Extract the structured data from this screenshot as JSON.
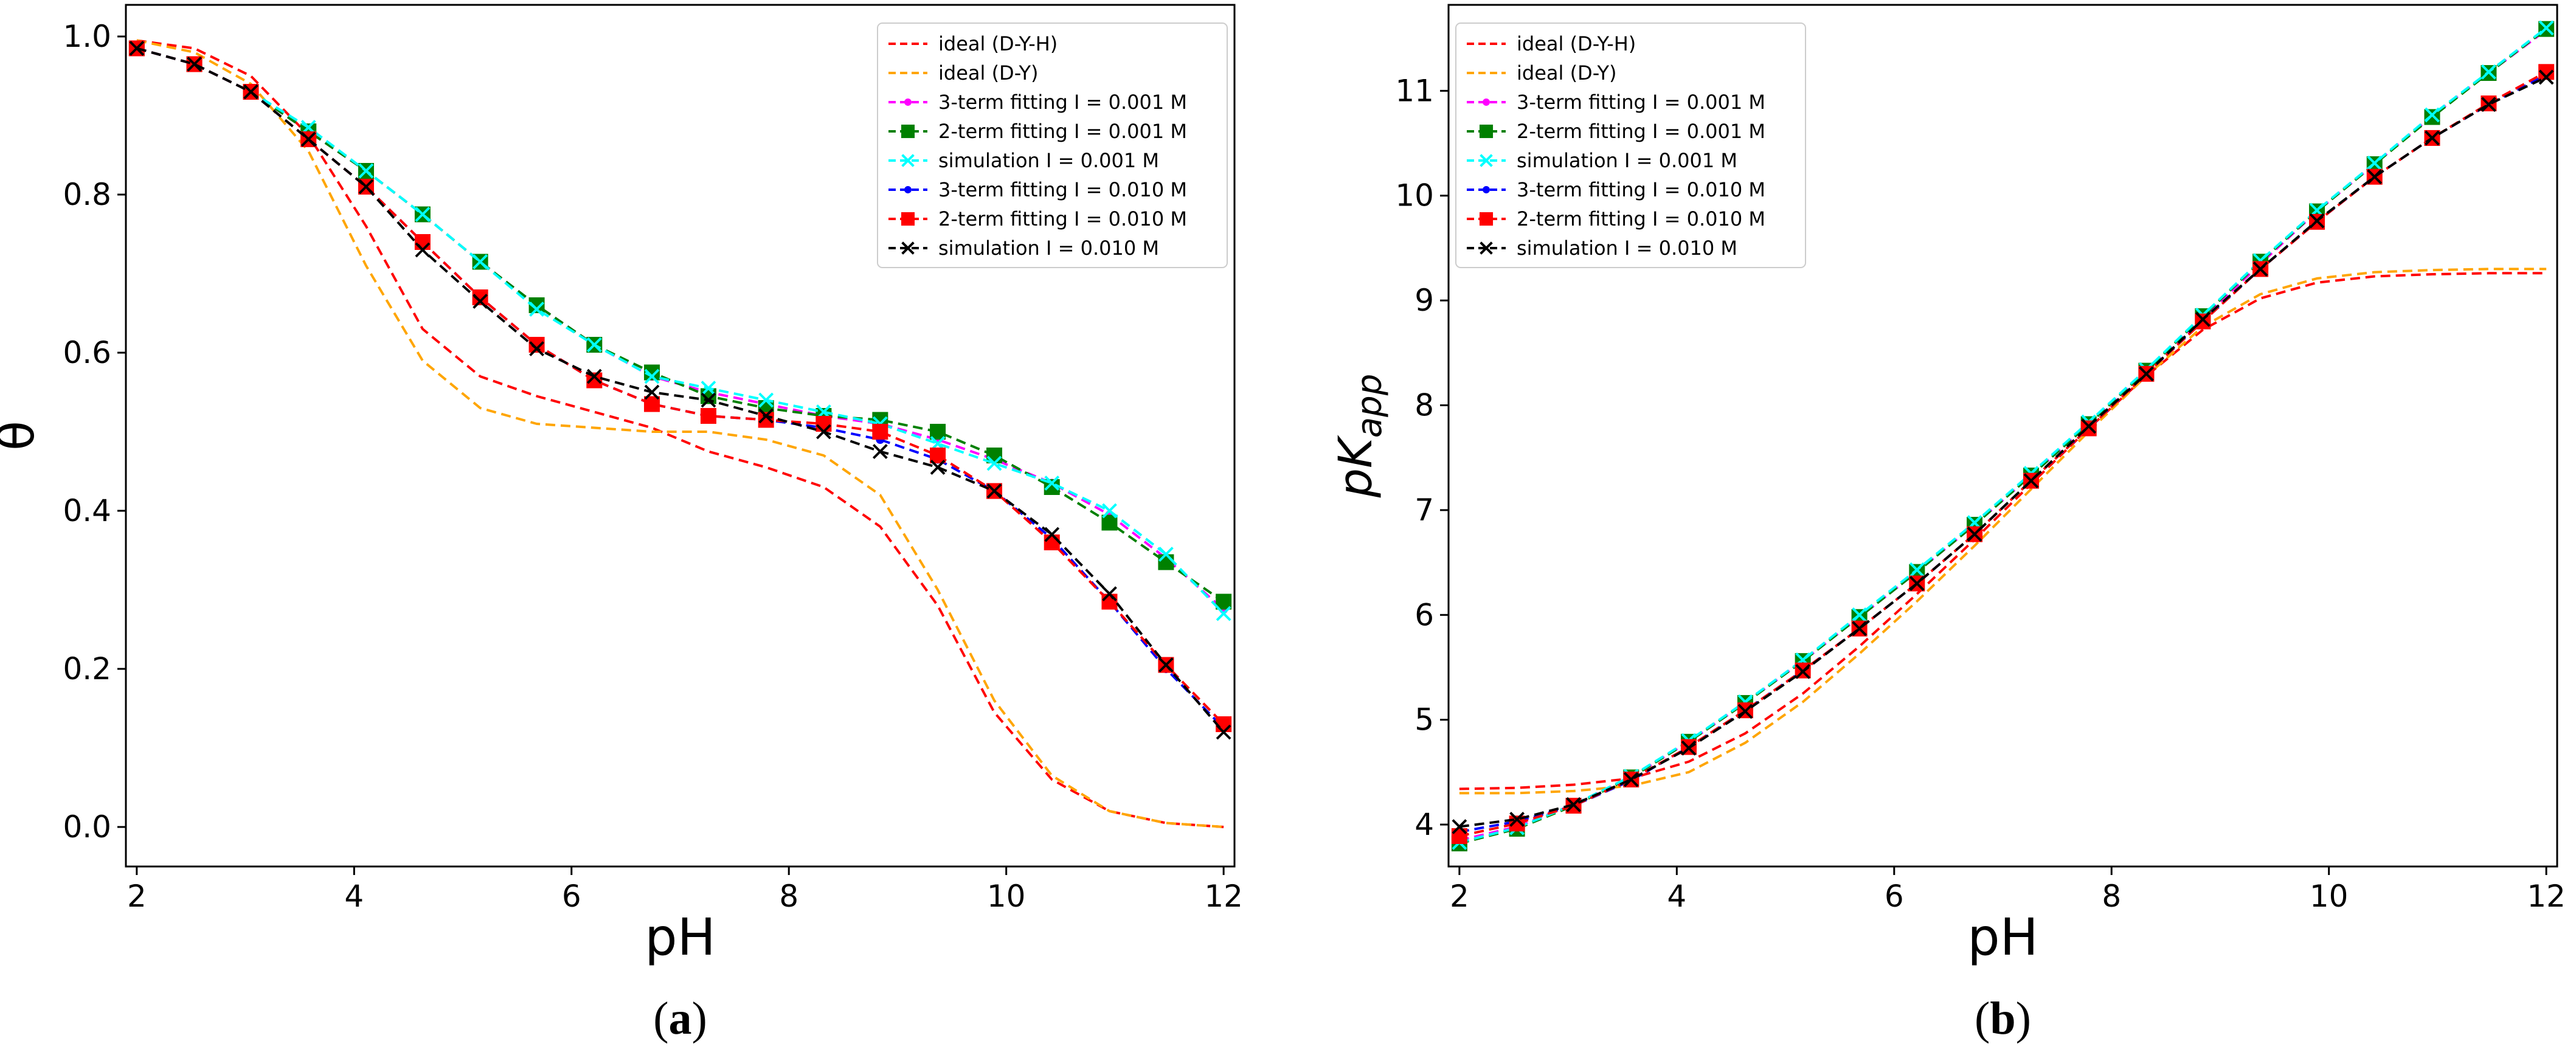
{
  "series_styles": [
    {
      "key": "ideal_dyh",
      "label": "ideal (D-Y-H)",
      "color": "#ff0000",
      "marker": "none"
    },
    {
      "key": "ideal_dy",
      "label": "ideal (D-Y)",
      "color": "#ffa500",
      "marker": "none"
    },
    {
      "key": "fit3_001",
      "label": "3-term fitting I = 0.001 M",
      "color": "#ff00ff",
      "marker": "dot"
    },
    {
      "key": "fit2_001",
      "label": "2-term fitting I = 0.001 M",
      "color": "#008000",
      "marker": "square"
    },
    {
      "key": "sim_001",
      "label": "simulation I = 0.001 M",
      "color": "#00ffff",
      "marker": "x"
    },
    {
      "key": "fit3_010",
      "label": "3-term fitting I = 0.010 M",
      "color": "#0000ff",
      "marker": "dot"
    },
    {
      "key": "fit2_010",
      "label": "2-term fitting I = 0.010 M",
      "color": "#ff0000",
      "marker": "square"
    },
    {
      "key": "sim_010",
      "label": "simulation I = 0.010 M",
      "color": "#000000",
      "marker": "x"
    }
  ],
  "chart_data": [
    {
      "id": "a",
      "type": "line",
      "caption": "a",
      "xlabel": "pH",
      "ylabel": "θ",
      "xlim": [
        1.9,
        12.1
      ],
      "ylim": [
        -0.05,
        1.04
      ],
      "xticks": [
        2,
        4,
        6,
        8,
        10,
        12
      ],
      "yticks": [
        0.0,
        0.2,
        0.4,
        0.6,
        0.8,
        1.0
      ],
      "ytick_labels": [
        "0.0",
        "0.2",
        "0.4",
        "0.6",
        "0.8",
        "1.0"
      ],
      "legend": "top-right",
      "x": [
        2.0,
        2.53,
        3.05,
        3.58,
        4.11,
        4.63,
        5.16,
        5.68,
        6.21,
        6.74,
        7.26,
        7.79,
        8.32,
        8.84,
        9.37,
        9.89,
        10.42,
        10.95,
        11.47,
        12.0
      ],
      "series": [
        {
          "key": "ideal_dyh",
          "values": [
            0.995,
            0.985,
            0.95,
            0.875,
            0.76,
            0.63,
            0.57,
            0.545,
            0.525,
            0.505,
            0.475,
            0.455,
            0.43,
            0.38,
            0.28,
            0.145,
            0.06,
            0.02,
            0.005,
            0.0
          ]
        },
        {
          "key": "ideal_dy",
          "values": [
            0.995,
            0.98,
            0.94,
            0.855,
            0.71,
            0.59,
            0.53,
            0.51,
            0.505,
            0.5,
            0.5,
            0.49,
            0.47,
            0.42,
            0.3,
            0.16,
            0.065,
            0.02,
            0.005,
            0.0
          ]
        },
        {
          "key": "fit3_001",
          "values": [
            0.985,
            0.965,
            0.93,
            0.88,
            0.83,
            0.775,
            0.715,
            0.66,
            0.61,
            0.57,
            0.55,
            0.535,
            0.52,
            0.51,
            0.49,
            0.465,
            0.435,
            0.395,
            0.34,
            0.275
          ]
        },
        {
          "key": "fit2_001",
          "values": [
            0.985,
            0.965,
            0.93,
            0.88,
            0.83,
            0.775,
            0.715,
            0.66,
            0.61,
            0.575,
            0.545,
            0.53,
            0.52,
            0.515,
            0.5,
            0.47,
            0.43,
            0.385,
            0.335,
            0.285
          ]
        },
        {
          "key": "sim_001",
          "values": [
            0.985,
            0.965,
            0.93,
            0.885,
            0.83,
            0.775,
            0.715,
            0.655,
            0.61,
            0.57,
            0.555,
            0.54,
            0.525,
            0.51,
            0.485,
            0.46,
            0.435,
            0.4,
            0.345,
            0.27
          ]
        },
        {
          "key": "fit3_010",
          "values": [
            0.985,
            0.965,
            0.93,
            0.87,
            0.81,
            0.74,
            0.67,
            0.61,
            0.565,
            0.535,
            0.52,
            0.515,
            0.505,
            0.49,
            0.465,
            0.425,
            0.365,
            0.285,
            0.2,
            0.125
          ]
        },
        {
          "key": "fit2_010",
          "values": [
            0.985,
            0.965,
            0.93,
            0.87,
            0.81,
            0.74,
            0.67,
            0.61,
            0.565,
            0.535,
            0.52,
            0.515,
            0.51,
            0.5,
            0.47,
            0.425,
            0.36,
            0.285,
            0.205,
            0.13
          ]
        },
        {
          "key": "sim_010",
          "values": [
            0.985,
            0.965,
            0.93,
            0.87,
            0.81,
            0.73,
            0.665,
            0.605,
            0.57,
            0.55,
            0.54,
            0.52,
            0.5,
            0.475,
            0.455,
            0.425,
            0.37,
            0.295,
            0.205,
            0.12
          ]
        }
      ]
    },
    {
      "id": "b",
      "type": "line",
      "caption": "b",
      "xlabel": "pH",
      "ylabel": "pK",
      "ylabel_subscript": "app",
      "xlim": [
        1.9,
        12.1
      ],
      "ylim": [
        3.6,
        11.82
      ],
      "xticks": [
        2,
        4,
        6,
        8,
        10,
        12
      ],
      "yticks": [
        4,
        5,
        6,
        7,
        8,
        9,
        10,
        11
      ],
      "ytick_labels": [
        "4",
        "5",
        "6",
        "7",
        "8",
        "9",
        "10",
        "11"
      ],
      "legend": "top-left",
      "x": [
        2.0,
        2.53,
        3.05,
        3.58,
        4.11,
        4.63,
        5.16,
        5.68,
        6.21,
        6.74,
        7.26,
        7.79,
        8.32,
        8.84,
        9.37,
        9.89,
        10.42,
        10.95,
        11.47,
        12.0
      ],
      "series": [
        {
          "key": "ideal_dyh",
          "values": [
            4.34,
            4.35,
            4.38,
            4.44,
            4.6,
            4.87,
            5.25,
            5.7,
            6.2,
            6.72,
            7.25,
            7.78,
            8.28,
            8.72,
            9.02,
            9.17,
            9.23,
            9.25,
            9.26,
            9.26
          ]
        },
        {
          "key": "ideal_dy",
          "values": [
            4.3,
            4.3,
            4.32,
            4.37,
            4.5,
            4.78,
            5.17,
            5.63,
            6.13,
            6.66,
            7.2,
            7.75,
            8.28,
            8.75,
            9.06,
            9.21,
            9.27,
            9.29,
            9.3,
            9.3
          ]
        },
        {
          "key": "fit3_001",
          "values": [
            3.85,
            3.98,
            4.19,
            4.45,
            4.79,
            5.16,
            5.56,
            5.98,
            6.41,
            6.86,
            7.33,
            7.82,
            8.32,
            8.83,
            9.35,
            9.85,
            10.3,
            10.76,
            11.17,
            11.58
          ]
        },
        {
          "key": "fit2_001",
          "values": [
            3.82,
            3.96,
            4.18,
            4.45,
            4.79,
            5.16,
            5.56,
            5.98,
            6.41,
            6.86,
            7.33,
            7.82,
            8.33,
            8.85,
            9.37,
            9.85,
            10.3,
            10.75,
            11.17,
            11.59
          ]
        },
        {
          "key": "sim_001",
          "values": [
            3.83,
            3.97,
            4.19,
            4.46,
            4.8,
            5.17,
            5.57,
            6.0,
            6.43,
            6.88,
            7.35,
            7.84,
            8.34,
            8.86,
            9.38,
            9.86,
            10.31,
            10.77,
            11.18,
            11.6
          ]
        },
        {
          "key": "fit3_010",
          "values": [
            3.93,
            4.03,
            4.18,
            4.42,
            4.74,
            5.09,
            5.47,
            5.87,
            6.3,
            6.77,
            7.28,
            7.78,
            8.3,
            8.8,
            9.3,
            9.75,
            10.18,
            10.55,
            10.87,
            11.15
          ]
        },
        {
          "key": "fit2_010",
          "values": [
            3.89,
            4.01,
            4.18,
            4.43,
            4.74,
            5.09,
            5.47,
            5.87,
            6.3,
            6.77,
            7.28,
            7.78,
            8.3,
            8.8,
            9.3,
            9.75,
            10.18,
            10.55,
            10.88,
            11.18
          ]
        },
        {
          "key": "sim_010",
          "values": [
            3.98,
            4.05,
            4.19,
            4.43,
            4.73,
            5.08,
            5.46,
            5.87,
            6.3,
            6.77,
            7.28,
            7.8,
            8.3,
            8.82,
            9.3,
            9.76,
            10.18,
            10.55,
            10.87,
            11.13
          ]
        }
      ]
    }
  ]
}
